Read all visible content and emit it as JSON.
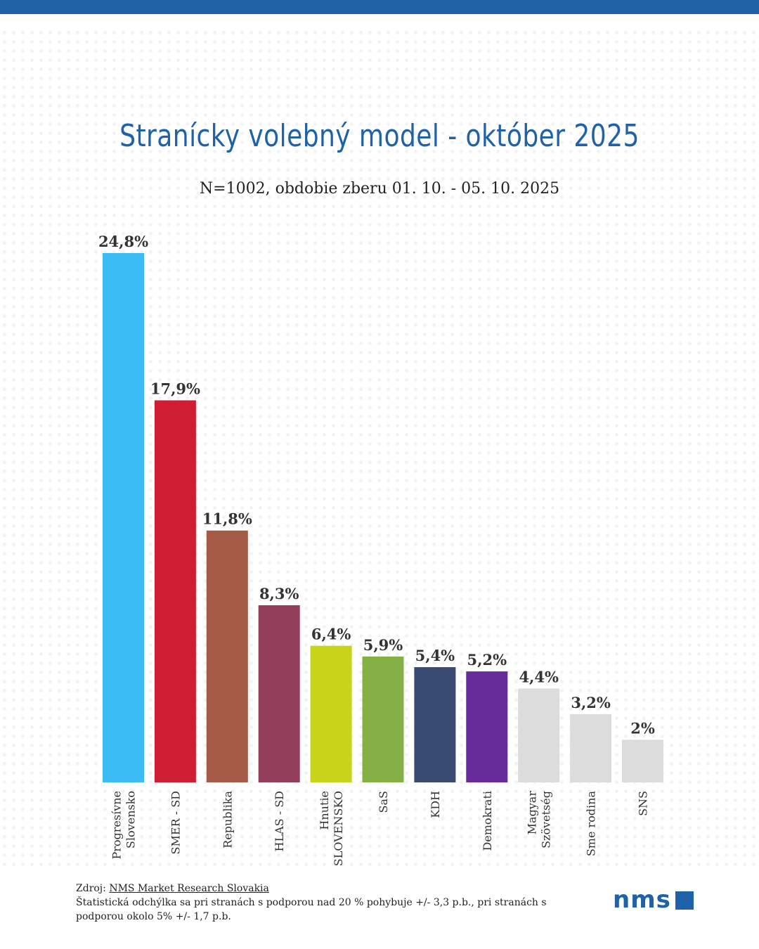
{
  "header": {
    "title": "Stranícky volebný model - október 2025",
    "subtitle": "N=1002, obdobie zberu 01. 10. - 05. 10. 2025"
  },
  "colors": {
    "brand": "#1f62a8"
  },
  "chart_data": {
    "type": "bar",
    "title": "Stranícky volebný model - október 2025",
    "subtitle": "N=1002, obdobie zberu 01. 10. - 05. 10. 2025",
    "xlabel": "",
    "ylabel": "",
    "ylim": [
      0,
      24.8
    ],
    "grid": false,
    "categories": [
      [
        "Progresívne",
        "Slovensko"
      ],
      [
        "SMER - SD"
      ],
      [
        "Republika"
      ],
      [
        "HLAS - SD"
      ],
      [
        "Hnutie",
        "SLOVENSKO"
      ],
      [
        "SaS"
      ],
      [
        "KDH"
      ],
      [
        "Demokrati"
      ],
      [
        "Magyar",
        "Szövetség"
      ],
      [
        "Sme rodina"
      ],
      [
        "SNS"
      ]
    ],
    "values": [
      24.8,
      17.9,
      11.8,
      8.3,
      6.4,
      5.9,
      5.4,
      5.2,
      4.4,
      3.2,
      2
    ],
    "value_labels": [
      "24,8%",
      "17,9%",
      "11,8%",
      "8,3%",
      "6,4%",
      "5,9%",
      "5,4%",
      "5,2%",
      "4,4%",
      "3,2%",
      "2%"
    ],
    "bar_colors": [
      "#3bbcf4",
      "#cf1d34",
      "#a45a44",
      "#933f5c",
      "#c8d41a",
      "#84b045",
      "#394a73",
      "#682b9b",
      "#dcdcdc",
      "#dcdcdc",
      "#dcdcdc"
    ]
  },
  "footer": {
    "source_prefix": "Zdroj: ",
    "source_link": "NMS Market Research Slovakia",
    "note": "Štatistická odchýlka sa pri stranách s podporou nad 20 % pohybuje +/- 3,3 p.b., pri stranách s podporou okolo 5% +/- 1,7 p.b."
  },
  "logo": {
    "text": "nms"
  }
}
